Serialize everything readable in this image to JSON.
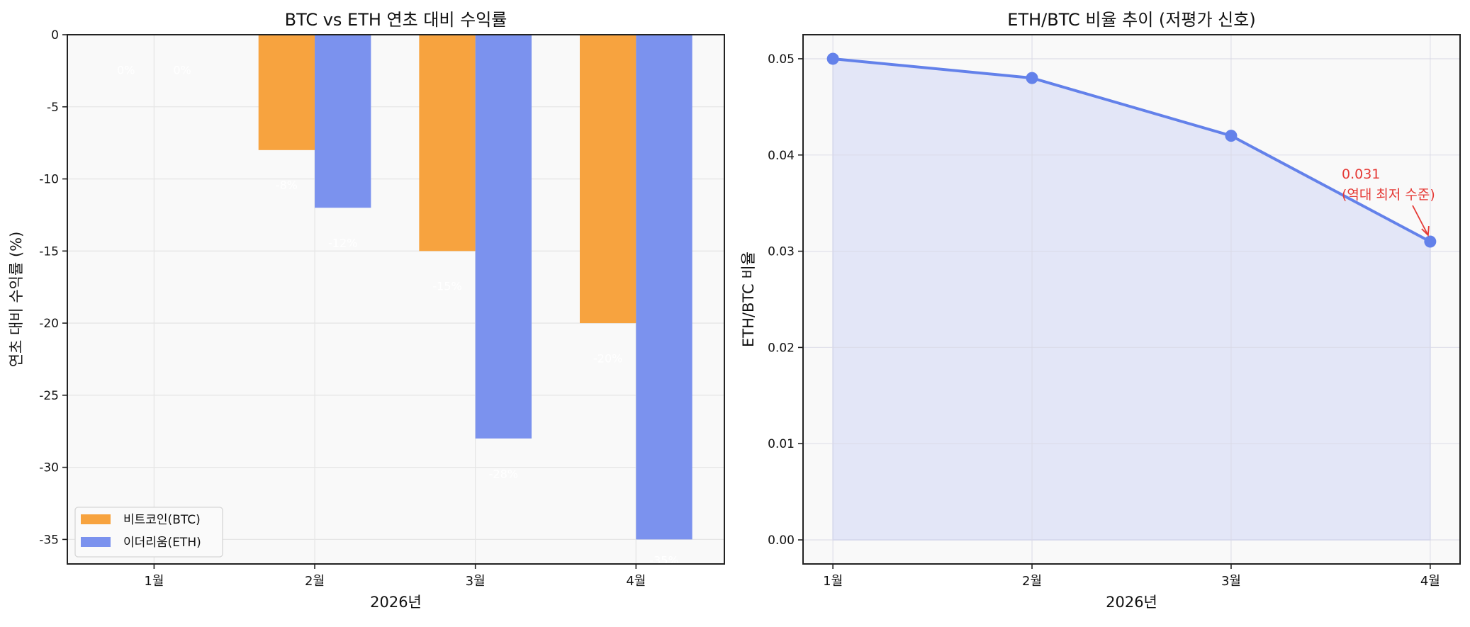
{
  "chart_data": [
    {
      "type": "bar",
      "title": "BTC vs ETH 연초 대비 수익률",
      "xlabel": "2026년",
      "ylabel": "연초 대비 수익률 (%)",
      "categories": [
        "1월",
        "2월",
        "3월",
        "4월"
      ],
      "ylim": [
        -36.7,
        0
      ],
      "yticks": [
        0,
        -5,
        -10,
        -15,
        -20,
        -25,
        -30,
        -35
      ],
      "grid": true,
      "legend_position": "lower-left",
      "series": [
        {
          "name": "비트코인(BTC)",
          "color": "#f7a33f",
          "values": [
            0,
            -8,
            -15,
            -20
          ],
          "labels": [
            "0%",
            "-8%",
            "-15%",
            "-20%"
          ]
        },
        {
          "name": "이더리움(ETH)",
          "color": "#7b92ee",
          "values": [
            0,
            -12,
            -28,
            -35
          ],
          "labels": [
            "0%",
            "-12%",
            "-28%",
            "-35%"
          ]
        }
      ]
    },
    {
      "type": "line",
      "title": "ETH/BTC 비율 추이 (저평가 신호)",
      "xlabel": "2026년",
      "ylabel": "ETH/BTC 비율",
      "categories": [
        "1월",
        "2월",
        "3월",
        "4월"
      ],
      "ylim": [
        -0.0025,
        0.0525
      ],
      "yticks": [
        "0.00",
        "0.01",
        "0.02",
        "0.03",
        "0.04",
        "0.05"
      ],
      "grid": true,
      "fill_under": true,
      "series": [
        {
          "color": "#6381ea",
          "fill_color": "#e3e6f7",
          "values": [
            0.05,
            0.048,
            0.042,
            0.031
          ]
        }
      ],
      "annotation": {
        "lines": [
          "0.031",
          "(역대 최저 수준)"
        ],
        "color": "#e53935",
        "target_index": 3
      }
    }
  ]
}
